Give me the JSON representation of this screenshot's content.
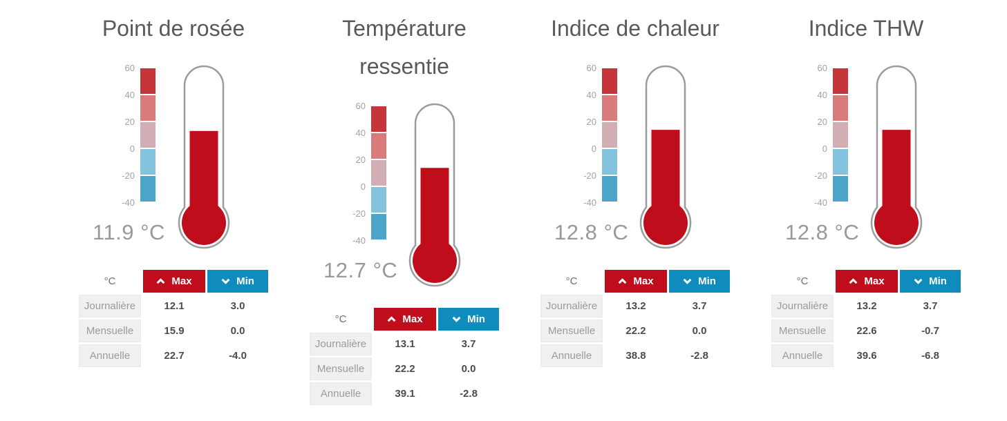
{
  "colors": {
    "accent_red": "#c00d1c",
    "accent_blue": "#0f8bbd",
    "mercury_red": "#c00d1c",
    "thermometer_outline": "#9b9b9b",
    "title_gray": "#58595b",
    "value_gray": "#98999b",
    "row_label_bg": "#f0f0f0"
  },
  "scale": {
    "ticks": [
      "60",
      "40",
      "20",
      "0",
      "-20",
      "-40"
    ],
    "segment_colors": [
      "#c5353a",
      "#d97b7b",
      "#d2aeb5",
      "#84c3de",
      "#4aa5c8"
    ]
  },
  "table": {
    "unit_header": "°C",
    "max_label": "Max",
    "min_label": "Min"
  },
  "panels": [
    {
      "title": "Point de rosée",
      "value_display": "11.9 °C",
      "value_c": 11.9,
      "rows": [
        {
          "label": "Journalière",
          "max": "12.1",
          "min": "3.0"
        },
        {
          "label": "Mensuelle",
          "max": "15.9",
          "min": "0.0"
        },
        {
          "label": "Annuelle",
          "max": "22.7",
          "min": "-4.0"
        }
      ]
    },
    {
      "title": "Température ressentie",
      "value_display": "12.7 °C",
      "value_c": 12.7,
      "rows": [
        {
          "label": "Journalière",
          "max": "13.1",
          "min": "3.7"
        },
        {
          "label": "Mensuelle",
          "max": "22.2",
          "min": "0.0"
        },
        {
          "label": "Annuelle",
          "max": "39.1",
          "min": "-2.8"
        }
      ]
    },
    {
      "title": "Indice de chaleur",
      "value_display": "12.8 °C",
      "value_c": 12.8,
      "rows": [
        {
          "label": "Journalière",
          "max": "13.2",
          "min": "3.7"
        },
        {
          "label": "Mensuelle",
          "max": "22.2",
          "min": "0.0"
        },
        {
          "label": "Annuelle",
          "max": "38.8",
          "min": "-2.8"
        }
      ]
    },
    {
      "title": "Indice THW",
      "value_display": "12.8 °C",
      "value_c": 12.8,
      "rows": [
        {
          "label": "Journalière",
          "max": "13.2",
          "min": "3.7"
        },
        {
          "label": "Mensuelle",
          "max": "22.6",
          "min": "-0.7"
        },
        {
          "label": "Annuelle",
          "max": "39.6",
          "min": "-6.8"
        }
      ]
    }
  ],
  "chart_data": [
    {
      "type": "gauge",
      "title": "Point de rosée",
      "unit": "°C",
      "current_value": 11.9,
      "scale_range": [
        -40,
        60
      ],
      "scale_ticks": [
        60,
        40,
        20,
        0,
        -20,
        -40
      ],
      "stats_table": {
        "row_categories": [
          "Journalière",
          "Mensuelle",
          "Annuelle"
        ],
        "series": [
          {
            "name": "Max",
            "values": [
              12.1,
              15.9,
              22.7
            ]
          },
          {
            "name": "Min",
            "values": [
              3.0,
              0.0,
              -4.0
            ]
          }
        ]
      }
    },
    {
      "type": "gauge",
      "title": "Température ressentie",
      "unit": "°C",
      "current_value": 12.7,
      "scale_range": [
        -40,
        60
      ],
      "scale_ticks": [
        60,
        40,
        20,
        0,
        -20,
        -40
      ],
      "stats_table": {
        "row_categories": [
          "Journalière",
          "Mensuelle",
          "Annuelle"
        ],
        "series": [
          {
            "name": "Max",
            "values": [
              13.1,
              22.2,
              39.1
            ]
          },
          {
            "name": "Min",
            "values": [
              3.7,
              0.0,
              -2.8
            ]
          }
        ]
      }
    },
    {
      "type": "gauge",
      "title": "Indice de chaleur",
      "unit": "°C",
      "current_value": 12.8,
      "scale_range": [
        -40,
        60
      ],
      "scale_ticks": [
        60,
        40,
        20,
        0,
        -20,
        -40
      ],
      "stats_table": {
        "row_categories": [
          "Journalière",
          "Mensuelle",
          "Annuelle"
        ],
        "series": [
          {
            "name": "Max",
            "values": [
              13.2,
              22.2,
              38.8
            ]
          },
          {
            "name": "Min",
            "values": [
              3.7,
              0.0,
              -2.8
            ]
          }
        ]
      }
    },
    {
      "type": "gauge",
      "title": "Indice THW",
      "unit": "°C",
      "current_value": 12.8,
      "scale_range": [
        -40,
        60
      ],
      "scale_ticks": [
        60,
        40,
        20,
        0,
        -20,
        -40
      ],
      "stats_table": {
        "row_categories": [
          "Journalière",
          "Mensuelle",
          "Annuelle"
        ],
        "series": [
          {
            "name": "Max",
            "values": [
              13.2,
              22.6,
              39.6
            ]
          },
          {
            "name": "Min",
            "values": [
              3.7,
              -0.7,
              -6.8
            ]
          }
        ]
      }
    }
  ]
}
